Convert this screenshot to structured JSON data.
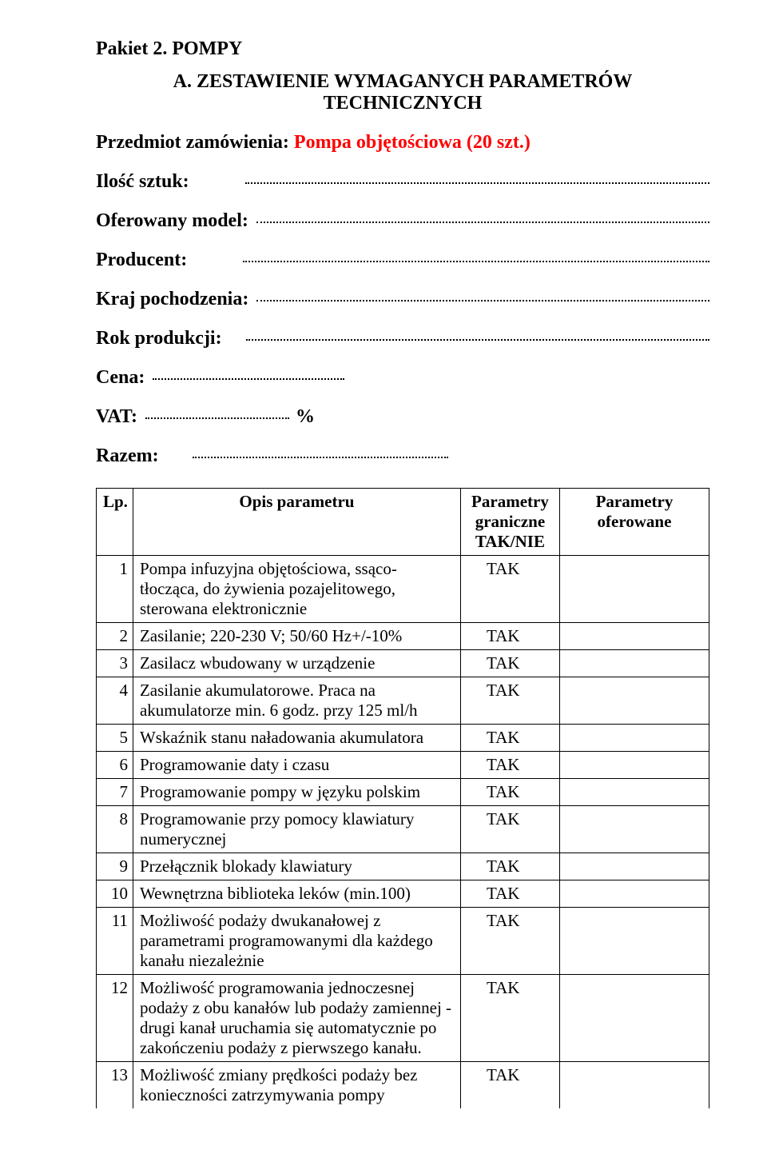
{
  "header": {
    "package_title": "Pakiet 2. POMPY",
    "section_heading": "A. ZESTAWIENIE WYMAGANYCH PARAMETRÓW TECHNICZNYCH",
    "order_label": "Przedmiot zamówienia: ",
    "order_value": "Pompa objętościowa (20 szt.)"
  },
  "fields": {
    "qty_label": "Ilość sztuk:",
    "model_label": "Oferowany model:",
    "producer_label": "Producent:",
    "origin_label": "Kraj pochodzenia:",
    "year_label": "Rok produkcji:",
    "price_label": "Cena:",
    "vat_label": "VAT:",
    "vat_pct": "%",
    "total_label": "Razem:"
  },
  "table": {
    "header": {
      "lp": "Lp.",
      "desc": "Opis parametru",
      "gran": "Parametry graniczne TAK/NIE",
      "ofr": "Parametry oferowane"
    },
    "rows": [
      {
        "lp": "1",
        "desc": "Pompa infuzyjna objętościowa, ssąco-tłocząca, do żywienia pozajelitowego, sterowana elektronicznie",
        "gran": "TAK",
        "last_visible": false
      },
      {
        "lp": "2",
        "desc": "Zasilanie; 220-230 V; 50/60 Hz+/-10%",
        "gran": "TAK",
        "last_visible": false
      },
      {
        "lp": "3",
        "desc": "Zasilacz wbudowany w urządzenie",
        "gran": "TAK",
        "last_visible": false
      },
      {
        "lp": "4",
        "desc": "Zasilanie akumulatorowe. Praca na akumulatorze min. 6 godz. przy 125 ml/h",
        "gran": "TAK",
        "last_visible": false
      },
      {
        "lp": "5",
        "desc": "Wskaźnik stanu naładowania akumulatora",
        "gran": "TAK",
        "last_visible": false
      },
      {
        "lp": "6",
        "desc": "Programowanie daty i czasu",
        "gran": "TAK",
        "last_visible": false
      },
      {
        "lp": "7",
        "desc": "Programowanie pompy w języku polskim",
        "gran": "TAK",
        "last_visible": false
      },
      {
        "lp": "8",
        "desc": "Programowanie przy pomocy klawiatury numerycznej",
        "gran": "TAK",
        "last_visible": false
      },
      {
        "lp": "9",
        "desc": "Przełącznik blokady klawiatury",
        "gran": "TAK",
        "last_visible": false
      },
      {
        "lp": "10",
        "desc": "Wewnętrzna biblioteka leków (min.100)",
        "gran": "TAK",
        "last_visible": false
      },
      {
        "lp": "11",
        "desc": "Możliwość podaży dwukanałowej z parametrami programowanymi dla każdego kanału niezależnie",
        "gran": "TAK",
        "last_visible": false
      },
      {
        "lp": "12",
        "desc": "Możliwość programowania jednoczesnej podaży z obu kanałów lub podaży zamiennej - drugi kanał uruchamia się automatycznie po zakończeniu podaży z pierwszego kanału.",
        "gran": "TAK",
        "last_visible": false
      },
      {
        "lp": "13",
        "desc": "Możliwość zmiany prędkości podaży bez konieczności zatrzymywania pompy",
        "gran": "TAK",
        "last_visible": true
      }
    ]
  }
}
